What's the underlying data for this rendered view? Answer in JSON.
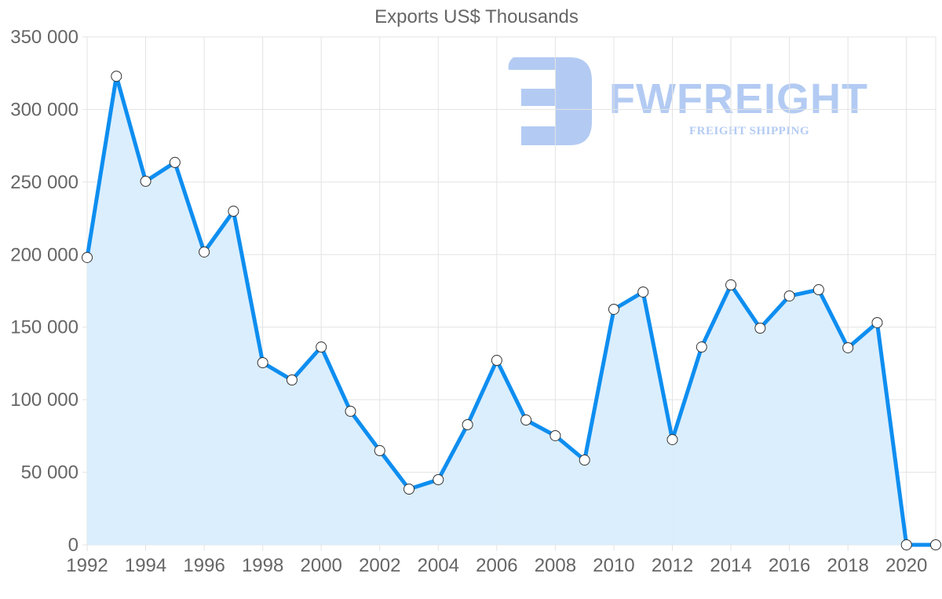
{
  "chart_data": {
    "type": "area",
    "title": "Exports US$ Thousands",
    "xlabel": "",
    "ylabel": "",
    "x": [
      1992,
      1993,
      1994,
      1995,
      1996,
      1997,
      1998,
      1999,
      2000,
      2001,
      2002,
      2003,
      2004,
      2005,
      2006,
      2007,
      2008,
      2009,
      2010,
      2011,
      2012,
      2013,
      2014,
      2015,
      2016,
      2017,
      2018,
      2019,
      2020,
      2021
    ],
    "series": [
      {
        "name": "Exports US$ Thousands",
        "values": [
          198000,
          322900,
          250500,
          263500,
          201800,
          229900,
          125500,
          113600,
          136300,
          92000,
          64900,
          38400,
          44900,
          82800,
          127100,
          86000,
          75200,
          58400,
          162300,
          174200,
          72500,
          136300,
          179100,
          149300,
          171500,
          175800,
          135800,
          153100,
          0,
          0
        ]
      }
    ],
    "ylim": [
      0,
      350000
    ],
    "yticks": [
      0,
      50000,
      100000,
      150000,
      200000,
      250000,
      300000,
      350000
    ],
    "ytick_labels": [
      "0",
      "50 000",
      "100 000",
      "150 000",
      "200 000",
      "250 000",
      "300 000",
      "350 000"
    ],
    "xticks": [
      1992,
      1994,
      1996,
      1998,
      2000,
      2002,
      2004,
      2006,
      2008,
      2010,
      2012,
      2014,
      2016,
      2018,
      2020
    ],
    "xtick_labels": [
      "1992",
      "1994",
      "1996",
      "1998",
      "2000",
      "2002",
      "2004",
      "2006",
      "2008",
      "2010",
      "2012",
      "2014",
      "2016",
      "2018",
      "2020"
    ],
    "grid": true,
    "legend": "none",
    "colors": {
      "line": "#0e8ef0",
      "fill": "#d9edfd",
      "grid": "#e3e3e3",
      "axis_text": "#666666",
      "point_fill": "#ffffff",
      "point_stroke": "#333333"
    }
  },
  "watermark": {
    "brand": "FWFREIGHT",
    "tagline": "FREIGHT SHIPPING",
    "color": "#b3cbf3"
  }
}
